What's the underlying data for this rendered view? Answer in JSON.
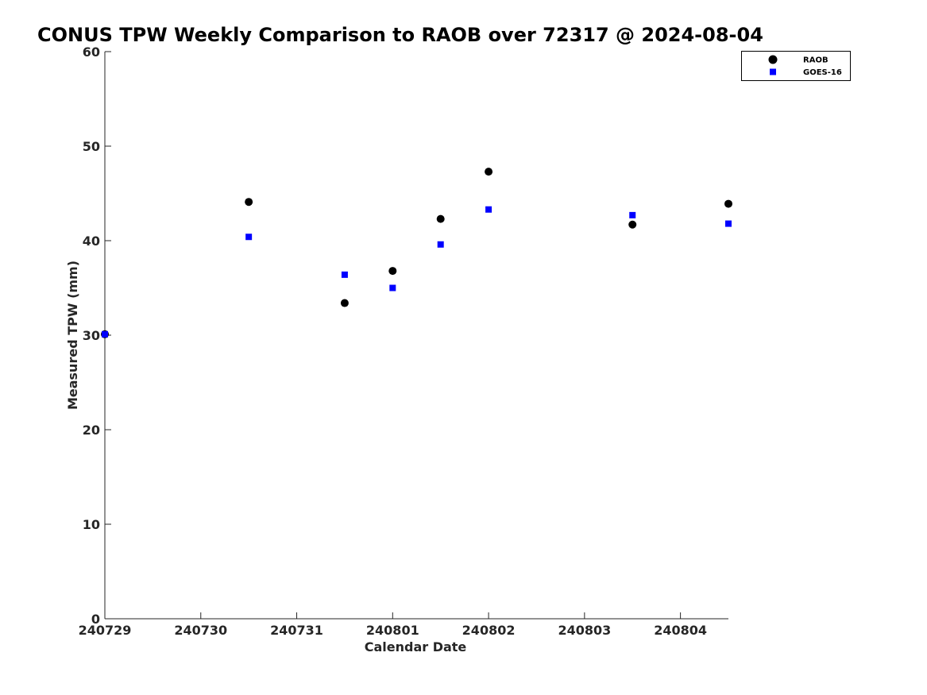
{
  "chart_data": {
    "type": "scatter",
    "title": "CONUS TPW Weekly Comparison to RAOB over 72317 @ 2024-08-04",
    "xlabel": "Calendar Date",
    "ylabel": "Measured TPW (mm)",
    "xlim": [
      0,
      6.5
    ],
    "ylim": [
      0,
      60
    ],
    "x_ticks": [
      0,
      1,
      2,
      3,
      4,
      5,
      6
    ],
    "x_tick_labels": [
      "240729",
      "240730",
      "240731",
      "240801",
      "240802",
      "240803",
      "240804"
    ],
    "y_ticks": [
      0,
      10,
      20,
      30,
      40,
      50,
      60
    ],
    "y_tick_labels": [
      "0",
      "10",
      "20",
      "30",
      "40",
      "50",
      "60"
    ],
    "grid": false,
    "legend_position": "top-right",
    "series": [
      {
        "name": "RAOB",
        "marker": "circle",
        "color": "#000000",
        "x": [
          0,
          1.5,
          2.5,
          3.0,
          3.5,
          4.0,
          5.5,
          6.5
        ],
        "y": [
          30.1,
          44.1,
          33.4,
          36.8,
          42.3,
          47.3,
          41.7,
          43.9
        ]
      },
      {
        "name": "GOES-16",
        "marker": "square",
        "color": "#0000ff",
        "x": [
          0,
          1.5,
          2.5,
          3.0,
          3.5,
          4.0,
          5.5,
          6.5
        ],
        "y": [
          30.1,
          40.4,
          36.4,
          35.0,
          39.6,
          43.3,
          42.7,
          41.8
        ]
      }
    ]
  }
}
